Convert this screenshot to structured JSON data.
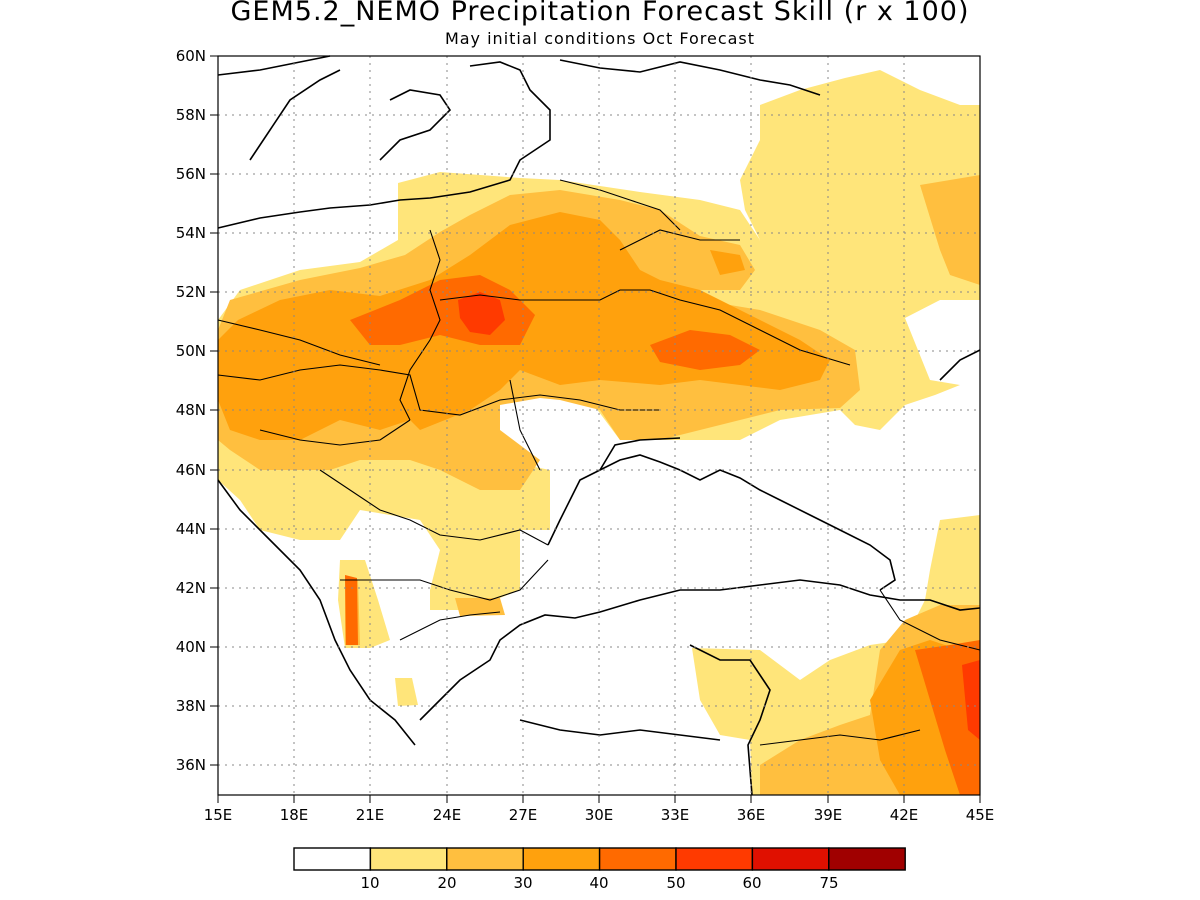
{
  "title": "GEM5.2_NEMO Precipitation Forecast Skill (r x 100)",
  "subtitle": "May initial conditions  Oct Forecast",
  "map": {
    "lon_range": [
      15,
      45
    ],
    "lat_range": [
      35,
      60
    ],
    "grid": "dotted",
    "lon_ticks": [
      "15E",
      "18E",
      "21E",
      "24E",
      "27E",
      "30E",
      "33E",
      "36E",
      "39E",
      "42E",
      "45E"
    ],
    "lat_ticks": [
      "60N",
      "58N",
      "56N",
      "54N",
      "52N",
      "50N",
      "48N",
      "46N",
      "44N",
      "42N",
      "40N",
      "38N",
      "36N"
    ]
  },
  "colorbar": {
    "colors": [
      "#ffffff",
      "#ffe57a",
      "#ffbf3f",
      "#ffa10d",
      "#ff6a00",
      "#ff3a00",
      "#e01000",
      "#a00000"
    ],
    "labels": [
      "10",
      "20",
      "30",
      "40",
      "50",
      "60",
      "75"
    ]
  }
}
